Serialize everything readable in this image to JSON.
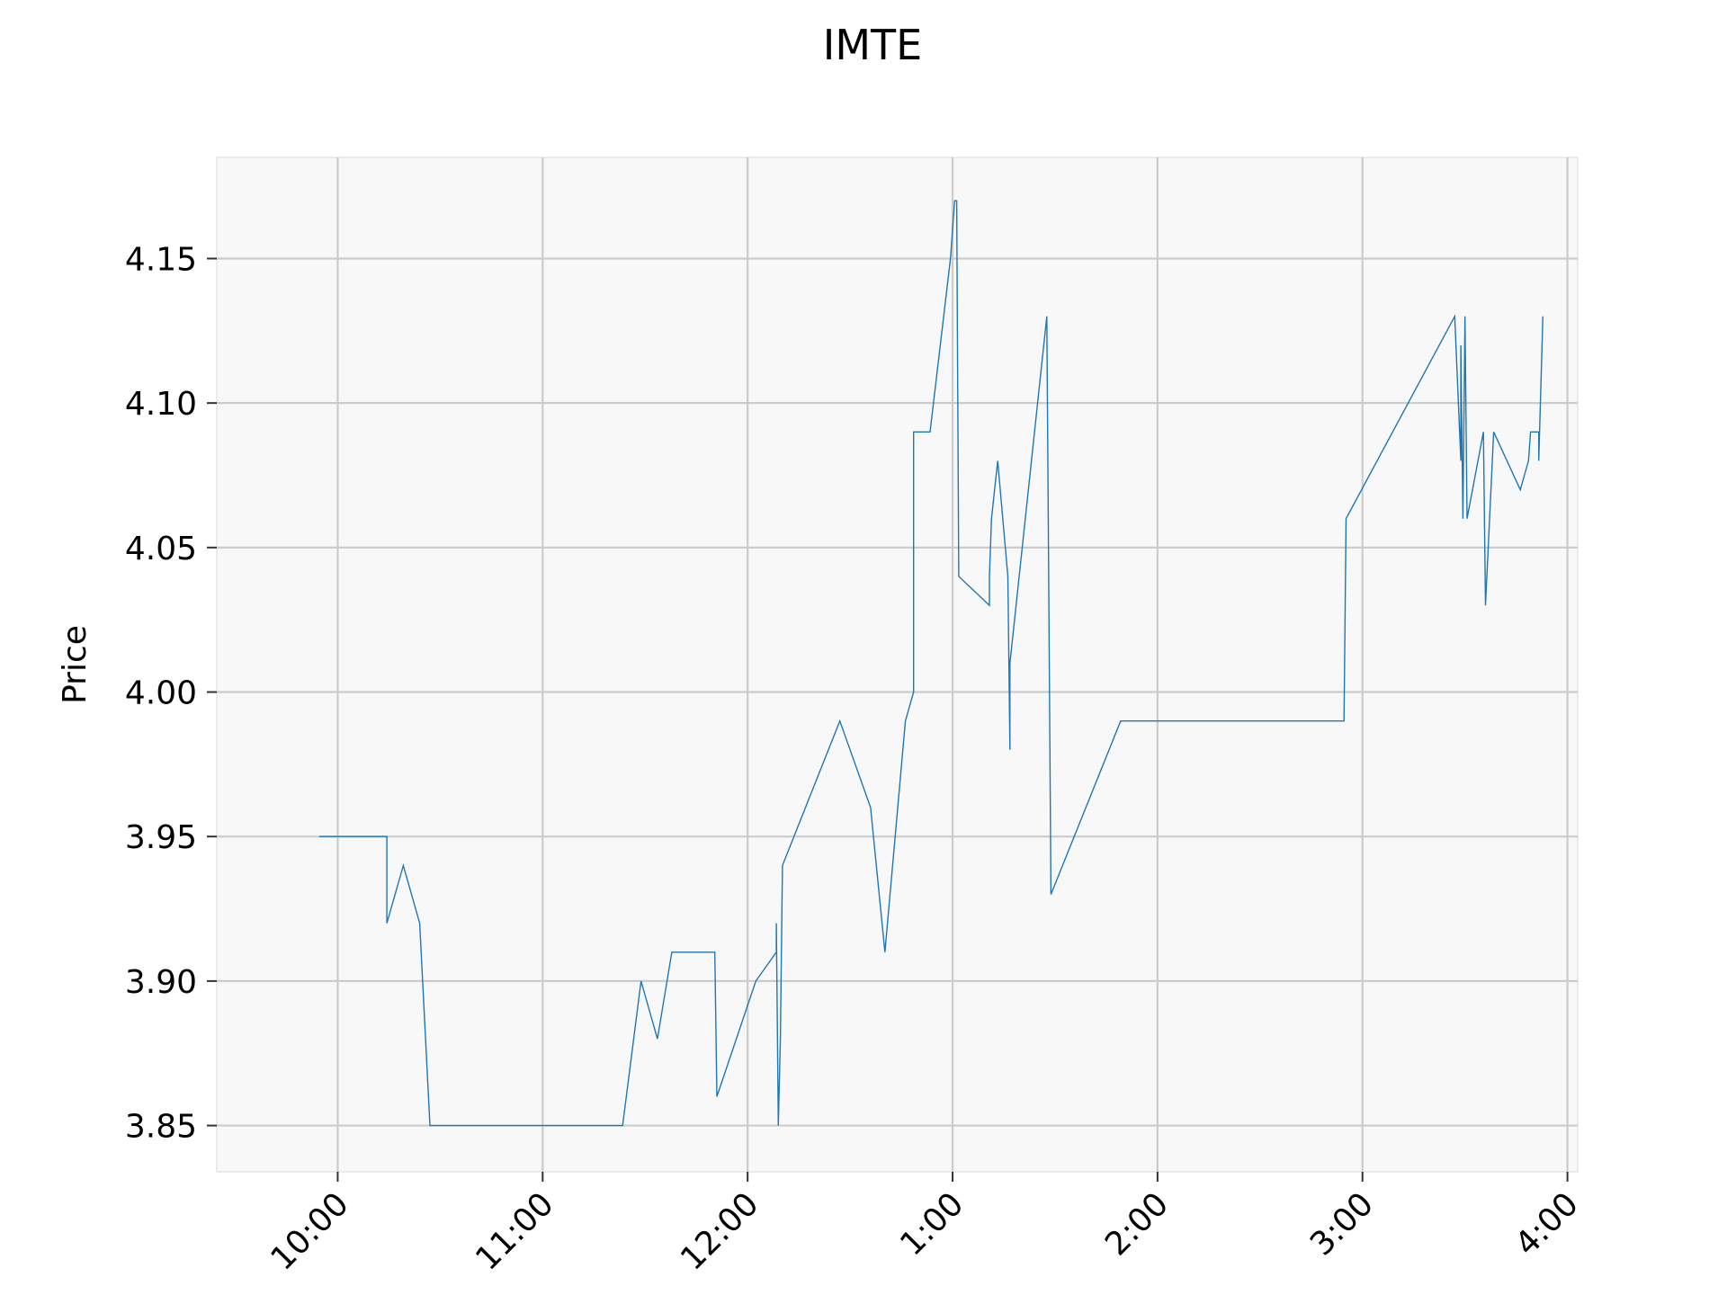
{
  "chart_data": {
    "type": "line",
    "title": "IMTE",
    "xlabel": "",
    "ylabel": "Price",
    "x_unit": "hours after 9:00 (clock time, 12-hour labels)",
    "xlim": [
      9.41,
      16.05
    ],
    "ylim": [
      3.834,
      4.185
    ],
    "grid": true,
    "legend": "none",
    "x_ticks": [
      {
        "value": 10,
        "label": "10:00"
      },
      {
        "value": 11,
        "label": "11:00"
      },
      {
        "value": 12,
        "label": "12:00"
      },
      {
        "value": 13,
        "label": "1:00"
      },
      {
        "value": 14,
        "label": "2:00"
      },
      {
        "value": 15,
        "label": "3:00"
      },
      {
        "value": 16,
        "label": "4:00"
      }
    ],
    "y_ticks": [
      {
        "value": 3.85,
        "label": "3.85"
      },
      {
        "value": 3.9,
        "label": "3.90"
      },
      {
        "value": 3.95,
        "label": "3.95"
      },
      {
        "value": 4.0,
        "label": "4.00"
      },
      {
        "value": 4.05,
        "label": "4.05"
      },
      {
        "value": 4.1,
        "label": "4.10"
      },
      {
        "value": 4.15,
        "label": "4.15"
      }
    ],
    "series": [
      {
        "color": "#1f77b4",
        "points": [
          [
            9.91,
            3.95
          ],
          [
            10.24,
            3.95
          ],
          [
            10.24,
            3.92
          ],
          [
            10.32,
            3.94
          ],
          [
            10.4,
            3.92
          ],
          [
            10.45,
            3.85
          ],
          [
            11.39,
            3.85
          ],
          [
            11.48,
            3.9
          ],
          [
            11.56,
            3.88
          ],
          [
            11.63,
            3.91
          ],
          [
            11.84,
            3.91
          ],
          [
            11.85,
            3.86
          ],
          [
            12.04,
            3.9
          ],
          [
            12.14,
            3.91
          ],
          [
            12.14,
            3.92
          ],
          [
            12.15,
            3.85
          ],
          [
            12.16,
            3.88
          ],
          [
            12.17,
            3.94
          ],
          [
            12.45,
            3.99
          ],
          [
            12.6,
            3.96
          ],
          [
            12.67,
            3.91
          ],
          [
            12.77,
            3.99
          ],
          [
            12.81,
            4.0
          ],
          [
            12.81,
            4.09
          ],
          [
            12.89,
            4.09
          ],
          [
            12.99,
            4.15
          ],
          [
            13.01,
            4.17
          ],
          [
            13.02,
            4.17
          ],
          [
            13.03,
            4.04
          ],
          [
            13.18,
            4.03
          ],
          [
            13.18,
            4.04
          ],
          [
            13.19,
            4.06
          ],
          [
            13.22,
            4.08
          ],
          [
            13.27,
            4.04
          ],
          [
            13.28,
            3.98
          ],
          [
            13.28,
            4.01
          ],
          [
            13.46,
            4.13
          ],
          [
            13.48,
            3.93
          ],
          [
            13.82,
            3.99
          ],
          [
            14.91,
            3.99
          ],
          [
            14.92,
            4.06
          ],
          [
            15.45,
            4.13
          ],
          [
            15.48,
            4.08
          ],
          [
            15.48,
            4.12
          ],
          [
            15.49,
            4.06
          ],
          [
            15.5,
            4.13
          ],
          [
            15.51,
            4.06
          ],
          [
            15.59,
            4.09
          ],
          [
            15.6,
            4.03
          ],
          [
            15.64,
            4.09
          ],
          [
            15.77,
            4.07
          ],
          [
            15.81,
            4.08
          ],
          [
            15.82,
            4.09
          ],
          [
            15.86,
            4.09
          ],
          [
            15.86,
            4.08
          ],
          [
            15.88,
            4.13
          ]
        ]
      }
    ]
  }
}
